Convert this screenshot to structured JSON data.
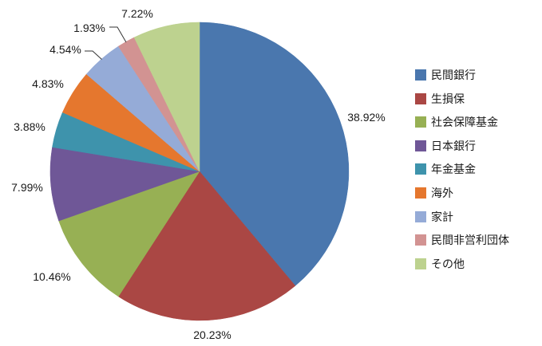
{
  "chart_data": {
    "type": "pie",
    "categories": [
      "民間銀行",
      "生損保",
      "社会保障基金",
      "日本銀行",
      "年金基金",
      "海外",
      "家計",
      "民間非営利団体",
      "その他"
    ],
    "values": [
      38.92,
      20.23,
      10.46,
      7.99,
      3.88,
      4.83,
      4.54,
      1.93,
      7.22
    ],
    "labels": [
      "38.92%",
      "20.23%",
      "10.46%",
      "7.99%",
      "3.88%",
      "4.83%",
      "4.54%",
      "1.93%",
      "7.22%"
    ],
    "colors": [
      "#4A77AE",
      "#AA4744",
      "#97B054",
      "#6F5797",
      "#3E93AC",
      "#E5772E",
      "#95ABD7",
      "#D29392",
      "#BDD28F"
    ],
    "unit": "%",
    "start_angle_deg": 0,
    "direction": "clockwise",
    "label_position": "outside",
    "legend_position": "right",
    "leader_line_categories": [
      "家計",
      "民間非営利団体"
    ],
    "label_color": "#1a1a1a",
    "leader_line_color": "#333333"
  }
}
